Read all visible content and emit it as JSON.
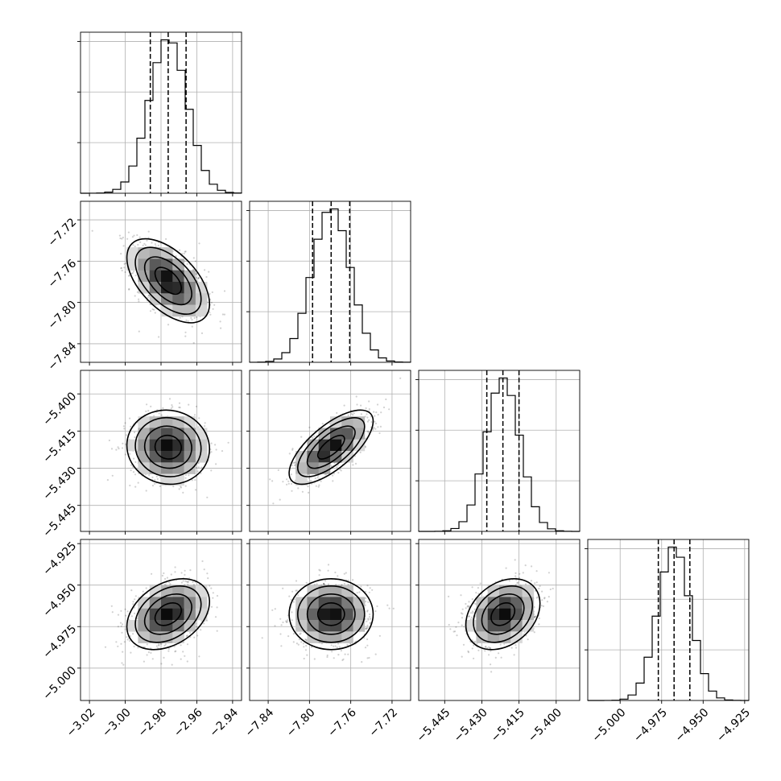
{
  "chart_data": {
    "type": "corner",
    "grid": true,
    "parameters": [
      {
        "id": "p1",
        "mean": -2.976,
        "std": 0.0105,
        "range": [
          -3.025,
          -2.935
        ],
        "ticks": [
          -3.02,
          -3.0,
          -2.98,
          -2.96,
          -2.94
        ],
        "tick_labels": [
          "−3.02",
          "−3.00",
          "−2.98",
          "−2.96",
          "−2.94"
        ],
        "quantiles": [
          -2.986,
          -2.976,
          -2.966
        ]
      },
      {
        "id": "p2",
        "mean": -7.779,
        "std": 0.0185,
        "range": [
          -7.858,
          -7.702
        ],
        "ticks": [
          -7.84,
          -7.8,
          -7.76,
          -7.72
        ],
        "tick_labels": [
          "−7.84",
          "−7.80",
          "−7.76",
          "−7.72"
        ],
        "quantiles": [
          -7.797,
          -7.779,
          -7.761
        ]
      },
      {
        "id": "p3",
        "mean": -5.4215,
        "std": 0.0068,
        "range": [
          -5.4555,
          -5.3905
        ],
        "ticks": [
          -5.445,
          -5.43,
          -5.415,
          -5.4
        ],
        "tick_labels": [
          "−5.445",
          "−5.430",
          "−5.415",
          "−5.400"
        ],
        "quantiles": [
          -5.428,
          -5.4215,
          -5.415
        ]
      },
      {
        "id": "p4",
        "mean": -4.9675,
        "std": 0.0097,
        "range": [
          -5.0195,
          -4.9225
        ],
        "ticks": [
          -5.0,
          -4.975,
          -4.95,
          -4.925
        ],
        "tick_labels": [
          "−5.000",
          "−4.975",
          "−4.950",
          "−4.925"
        ],
        "quantiles": [
          -4.977,
          -4.9675,
          -4.958
        ]
      }
    ],
    "correlations": [
      {
        "pair": [
          0,
          1
        ],
        "rho": -0.55
      },
      {
        "pair": [
          0,
          2
        ],
        "rho": -0.05
      },
      {
        "pair": [
          1,
          2
        ],
        "rho": 0.7
      },
      {
        "pair": [
          0,
          3
        ],
        "rho": 0.35
      },
      {
        "pair": [
          1,
          3
        ],
        "rho": 0.0
      },
      {
        "pair": [
          2,
          3
        ],
        "rho": 0.3
      }
    ],
    "contour_levels_sigma": [
      0.5,
      1.0,
      1.5,
      2.0
    ],
    "histogram_bins": 20
  }
}
